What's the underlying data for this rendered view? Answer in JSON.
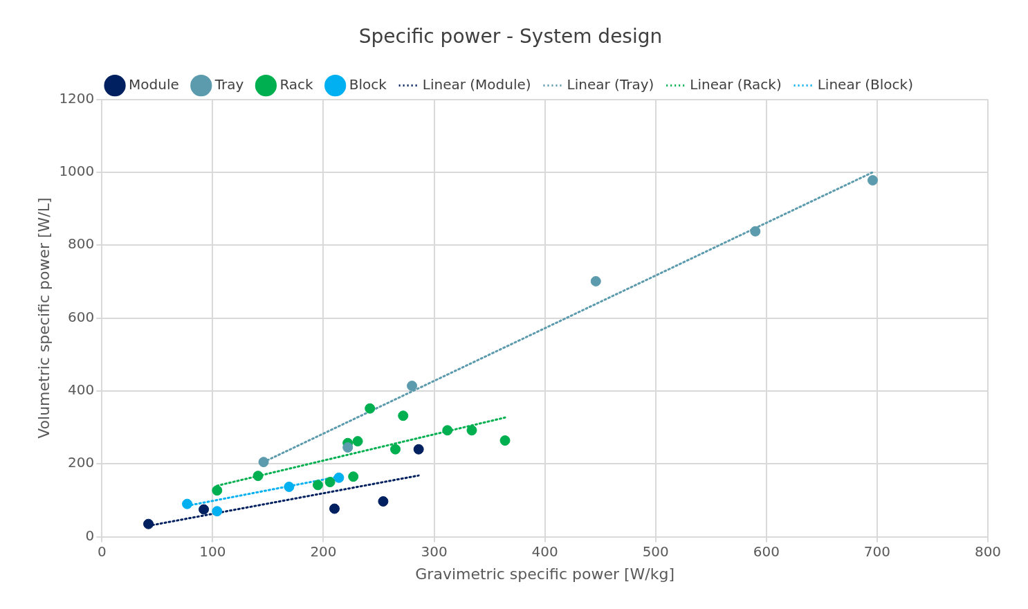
{
  "chart_data": {
    "type": "scatter",
    "title": "Specific power - System design",
    "xlabel": "Gravimetric specific power [W/kg]",
    "ylabel": "Volumetric specific power [W/L]",
    "xlim": [
      0,
      800
    ],
    "ylim": [
      0,
      1200
    ],
    "xticks": [
      0,
      100,
      200,
      300,
      400,
      500,
      600,
      700,
      800
    ],
    "yticks": [
      0,
      200,
      400,
      600,
      800,
      1000,
      1200
    ],
    "grid": true,
    "legend": "top",
    "marker": "circle",
    "series": [
      {
        "name": "Module",
        "color": "#002060",
        "x": [
          42,
          92,
          210,
          254,
          286
        ],
        "values": [
          35,
          75,
          77,
          97,
          240
        ]
      },
      {
        "name": "Tray",
        "color": "#5b9bad",
        "x": [
          146,
          222,
          280,
          446,
          590,
          696
        ],
        "values": [
          205,
          245,
          414,
          701,
          838,
          978
        ]
      },
      {
        "name": "Rack",
        "color": "#00b050",
        "x": [
          104,
          141,
          195,
          206,
          227,
          222,
          231,
          242,
          272,
          265,
          312,
          334,
          364
        ],
        "values": [
          127,
          167,
          142,
          150,
          165,
          257,
          262,
          352,
          332,
          240,
          292,
          292,
          264
        ]
      },
      {
        "name": "Block",
        "color": "#00b0f0",
        "x": [
          77,
          104,
          169,
          214
        ],
        "values": [
          90,
          70,
          137,
          162
        ]
      },
      {
        "name": "Linear (Module)",
        "type": "line",
        "line_style": "dotted",
        "marker": "none",
        "color": "#002060",
        "x": [
          42,
          286
        ],
        "values": [
          30,
          168
        ]
      },
      {
        "name": "Linear (Tray)",
        "type": "line",
        "line_style": "dotted",
        "marker": "none",
        "color": "#5b9bad",
        "x": [
          146,
          696
        ],
        "values": [
          205,
          1000
        ]
      },
      {
        "name": "Linear (Rack)",
        "type": "line",
        "line_style": "dotted",
        "marker": "none",
        "color": "#00b050",
        "x": [
          104,
          364
        ],
        "values": [
          140,
          327
        ]
      },
      {
        "name": "Linear (Block)",
        "type": "line",
        "line_style": "dotted",
        "marker": "none",
        "color": "#00b0f0",
        "x": [
          77,
          214
        ],
        "values": [
          85,
          165
        ]
      }
    ]
  }
}
